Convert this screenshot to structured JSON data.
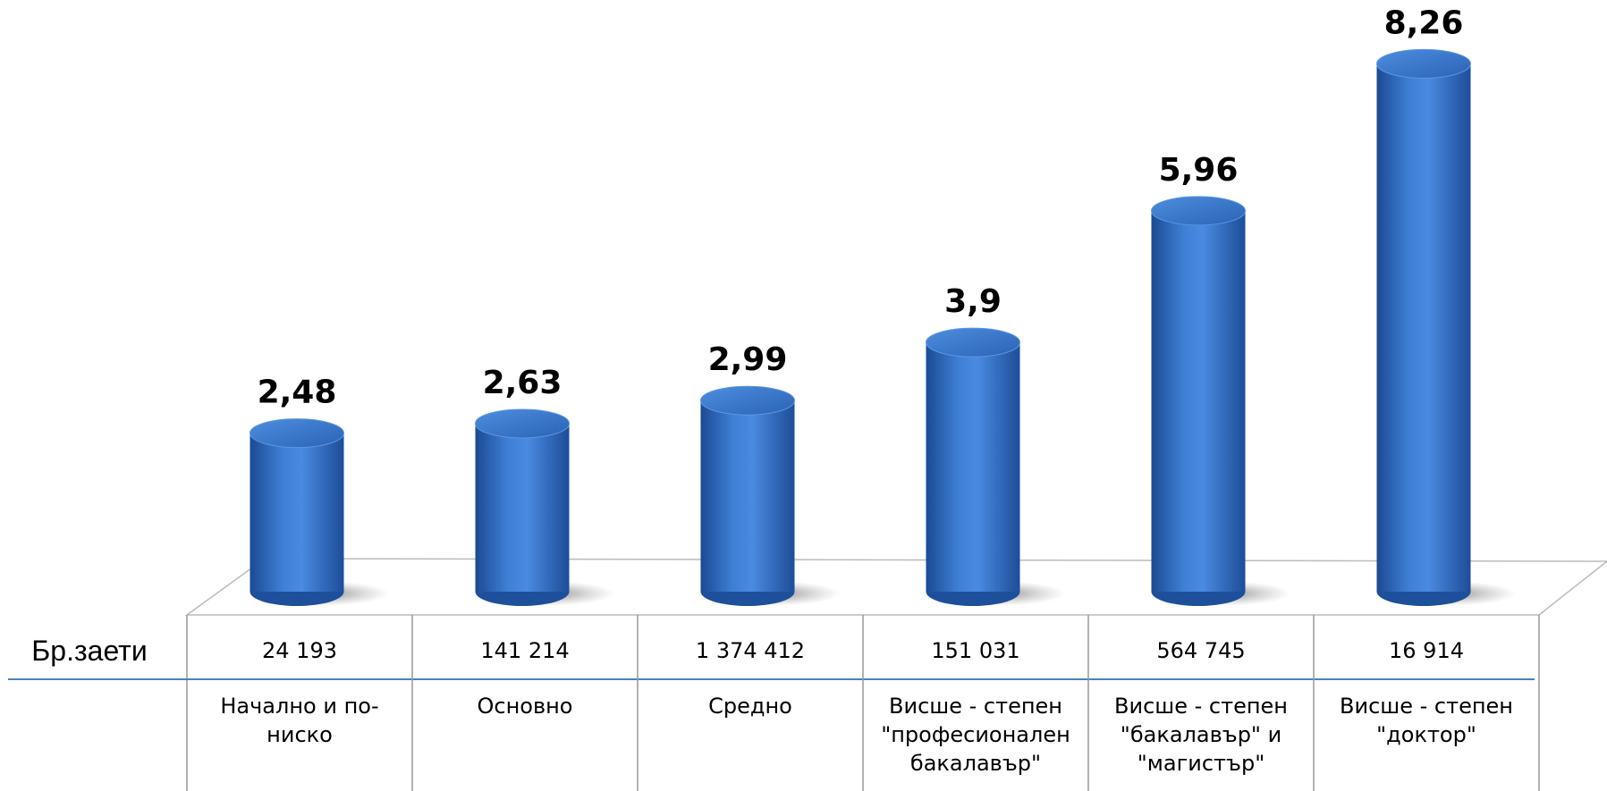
{
  "chart_data": {
    "type": "bar",
    "categories": [
      "Начално и по-ниско",
      "Основно",
      "Средно",
      "Висше - степен \"професионален бакалавър\"",
      "Висше - степен \"бакалавър\" и \"магистър\"",
      "Висше - степен \"доктор\""
    ],
    "values": [
      2.48,
      2.63,
      2.99,
      3.9,
      5.96,
      8.26
    ],
    "value_labels": [
      "2,48",
      "2,63",
      "2,99",
      "3,9",
      "5,96",
      "8,26"
    ],
    "color": "#2f6cc0",
    "table_row_label": "Бр.заети",
    "table_row_values": [
      "24 193",
      "141 214",
      "1 374 412",
      "151 031",
      "564 745",
      "16 914"
    ]
  }
}
